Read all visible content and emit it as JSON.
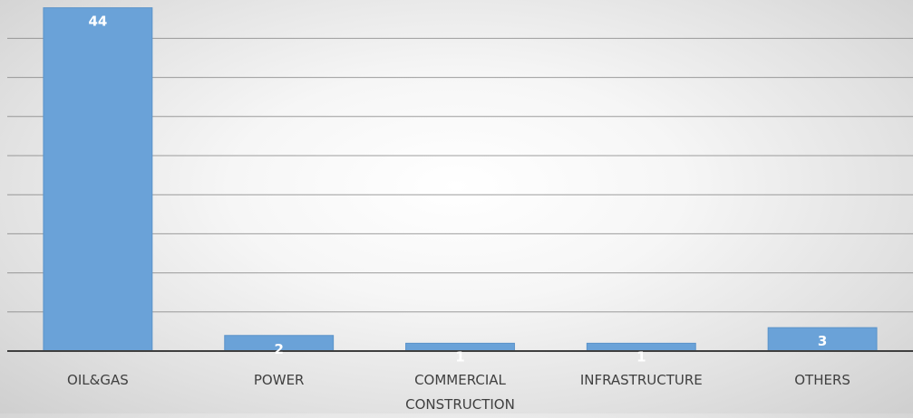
{
  "chart_data": {
    "type": "bar",
    "categories": [
      "OIL&GAS",
      "POWER",
      "COMMERCIAL CONSTRUCTION",
      "INFRASTRUCTURE",
      "OTHERS"
    ],
    "category_lines": [
      [
        "OIL&GAS"
      ],
      [
        "POWER"
      ],
      [
        "COMMERCIAL",
        "CONSTRUCTION"
      ],
      [
        "INFRASTRUCTURE"
      ],
      [
        "OTHERS"
      ]
    ],
    "values": [
      44,
      2,
      1,
      1,
      3
    ],
    "value_labels": [
      "44",
      "2",
      "1",
      "1",
      "3"
    ],
    "ylim": [
      0,
      45
    ],
    "gridlines": 8,
    "grid": true,
    "legend": "none",
    "bar_color": "#6aa2d8",
    "bar_edge_color": "#5b93c9",
    "gridline_color": "#7f7f7f",
    "axis_color": "#3f3f3f"
  }
}
